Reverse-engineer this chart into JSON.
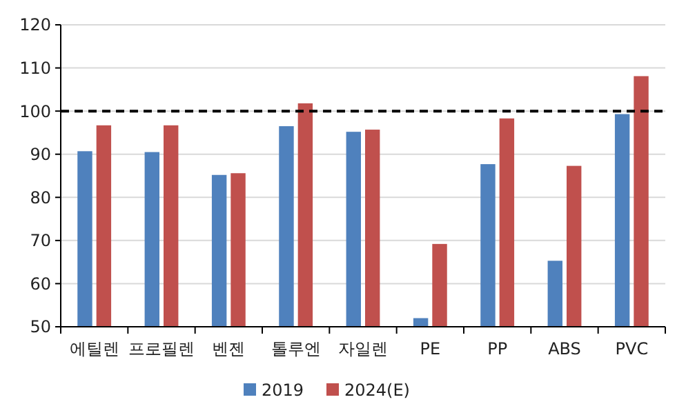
{
  "chart_data": {
    "type": "bar",
    "categories": [
      "에틸렌",
      "프로필렌",
      "벤젠",
      "톨루엔",
      "자일렌",
      "PE",
      "PP",
      "ABS",
      "PVC"
    ],
    "series": [
      {
        "name": "2019",
        "color": "#4f81bd",
        "values": [
          90.7,
          90.5,
          85.2,
          96.5,
          95.2,
          52,
          87.7,
          65.3,
          99.3
        ]
      },
      {
        "name": "2024(E)",
        "color": "#c0504d",
        "values": [
          96.7,
          96.7,
          85.6,
          101.8,
          95.7,
          69.2,
          98.3,
          87.3,
          108.1
        ]
      }
    ],
    "ylim": [
      50,
      120
    ],
    "yticks": [
      50,
      60,
      70,
      80,
      90,
      100,
      110,
      120
    ],
    "grid": "y",
    "legend": "bottom",
    "ref_lines": [
      {
        "axis": "y",
        "value": 100,
        "color": "#000000",
        "line_style": "dashed"
      }
    ]
  }
}
